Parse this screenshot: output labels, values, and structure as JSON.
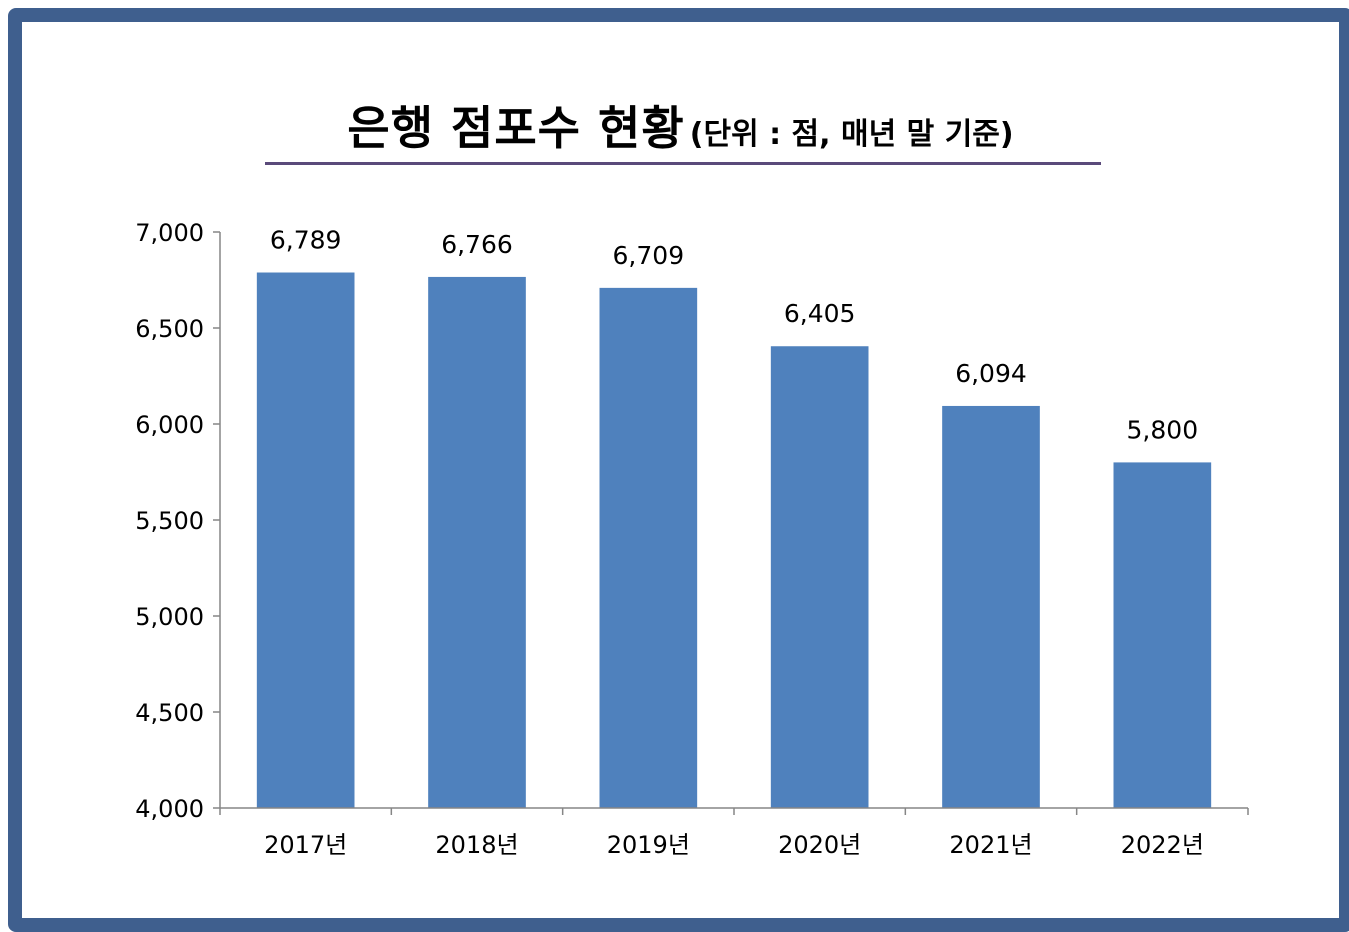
{
  "chart_data": {
    "type": "bar",
    "title": "은행 점포수 현황",
    "subtitle": "(단위 : 점, 매년 말 기준)",
    "categories": [
      "2017년",
      "2018년",
      "2019년",
      "2020년",
      "2021년",
      "2022년"
    ],
    "values": [
      6789,
      6766,
      6709,
      6405,
      6094,
      5800
    ],
    "value_labels": [
      "6,789",
      "6,766",
      "6,709",
      "6,405",
      "6,094",
      "5,800"
    ],
    "ylim": [
      4000,
      7000
    ],
    "yticks": [
      4000,
      4500,
      5000,
      5500,
      6000,
      6500,
      7000
    ],
    "ytick_labels": [
      "4,000",
      "4,500",
      "5,000",
      "5,500",
      "6,000",
      "6,500",
      "7,000"
    ],
    "grid": false,
    "bar_color": "#4f81bd",
    "axis_color": "#868686"
  }
}
